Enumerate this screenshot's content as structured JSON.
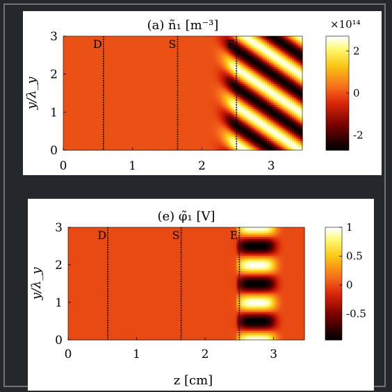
{
  "chart_data": [
    {
      "type": "heatmap",
      "panel": "a",
      "title": "(a) ñ₁ [m⁻³]",
      "ylabel": "y/λ_y",
      "xlabel": "",
      "xlim": [
        0,
        3.45
      ],
      "ylim": [
        0,
        3
      ],
      "xticks": [
        "0",
        "1",
        "2",
        "3"
      ],
      "yticks": [
        "0",
        "1",
        "2",
        "3"
      ],
      "colorbar": {
        "ticks": [
          "-2",
          "0",
          "2"
        ],
        "range": [
          -2.7,
          2.7
        ],
        "exponent_label": "×10¹⁴"
      },
      "markers": [
        {
          "label": "D",
          "z": 0.58
        },
        {
          "label": "S",
          "z": 1.65
        },
        {
          "label": "E",
          "z": 2.5
        }
      ],
      "pattern": {
        "kind": "oblique-wave",
        "start_z": 2.5,
        "amplitude": 2.6
      }
    },
    {
      "type": "heatmap",
      "panel": "e",
      "title": "(e) φ̃₁ [V]",
      "ylabel": "y/λ_y",
      "xlabel": "z [cm]",
      "xlim": [
        0,
        3.45
      ],
      "ylim": [
        0,
        3
      ],
      "xticks": [
        "0",
        "1",
        "2",
        "3"
      ],
      "yticks": [
        "0",
        "1",
        "2",
        "3"
      ],
      "colorbar": {
        "ticks": [
          "-0.5",
          "0",
          "0.5",
          "1"
        ],
        "range": [
          -0.95,
          1.0
        ],
        "exponent_label": ""
      },
      "markers": [
        {
          "label": "D",
          "z": 0.58
        },
        {
          "label": "S",
          "z": 1.65
        },
        {
          "label": "E",
          "z": 2.5
        }
      ],
      "pattern": {
        "kind": "standing-wave",
        "start_z": 2.5,
        "amplitude": 1.0
      }
    }
  ],
  "colors": {
    "background": "#24272b",
    "frame": "#6f7276",
    "zero_level": "#f56a1c",
    "marker_line": "#000000"
  }
}
